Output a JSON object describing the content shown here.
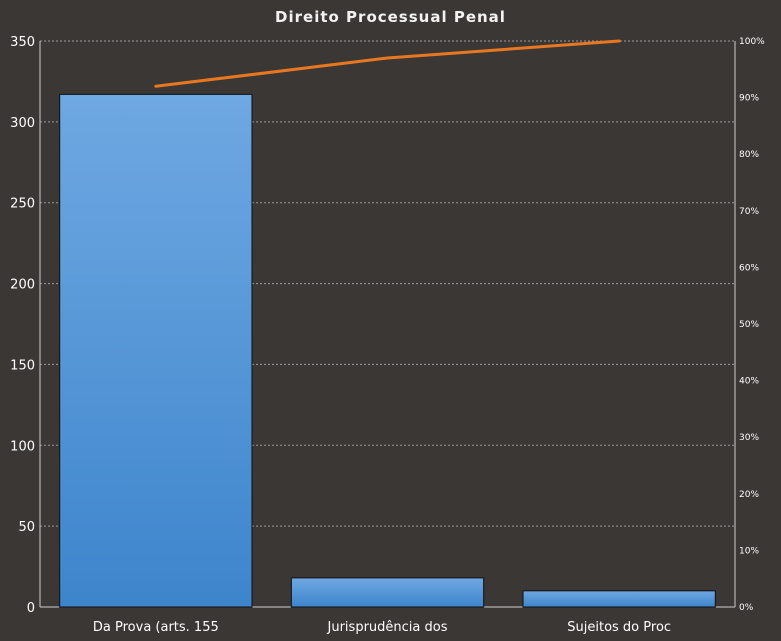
{
  "chart_data": {
    "type": "bar",
    "title": "Direito  Processual  Penal",
    "categories": [
      "Da Prova (arts. 155",
      "Jurisprudência dos",
      "Sujeitos do Proc"
    ],
    "series": [
      {
        "values": [
          317,
          18,
          10
        ],
        "color": "#4a8fd6"
      },
      {
        "type": "line",
        "axis": "right",
        "values": [
          0.92,
          0.97,
          1.0
        ],
        "color": "#e87722"
      }
    ],
    "ylim": [
      0,
      350
    ],
    "yticks": [
      "0",
      "50",
      "100",
      "150",
      "200",
      "250",
      "300",
      "350"
    ],
    "y2lim": [
      0,
      1
    ],
    "y2ticks": [
      "0%",
      "10%",
      "20%",
      "30%",
      "40%",
      "50%",
      "60%",
      "70%",
      "80%",
      "90%",
      "100%"
    ],
    "grid": true,
    "background": "#3a3735"
  }
}
